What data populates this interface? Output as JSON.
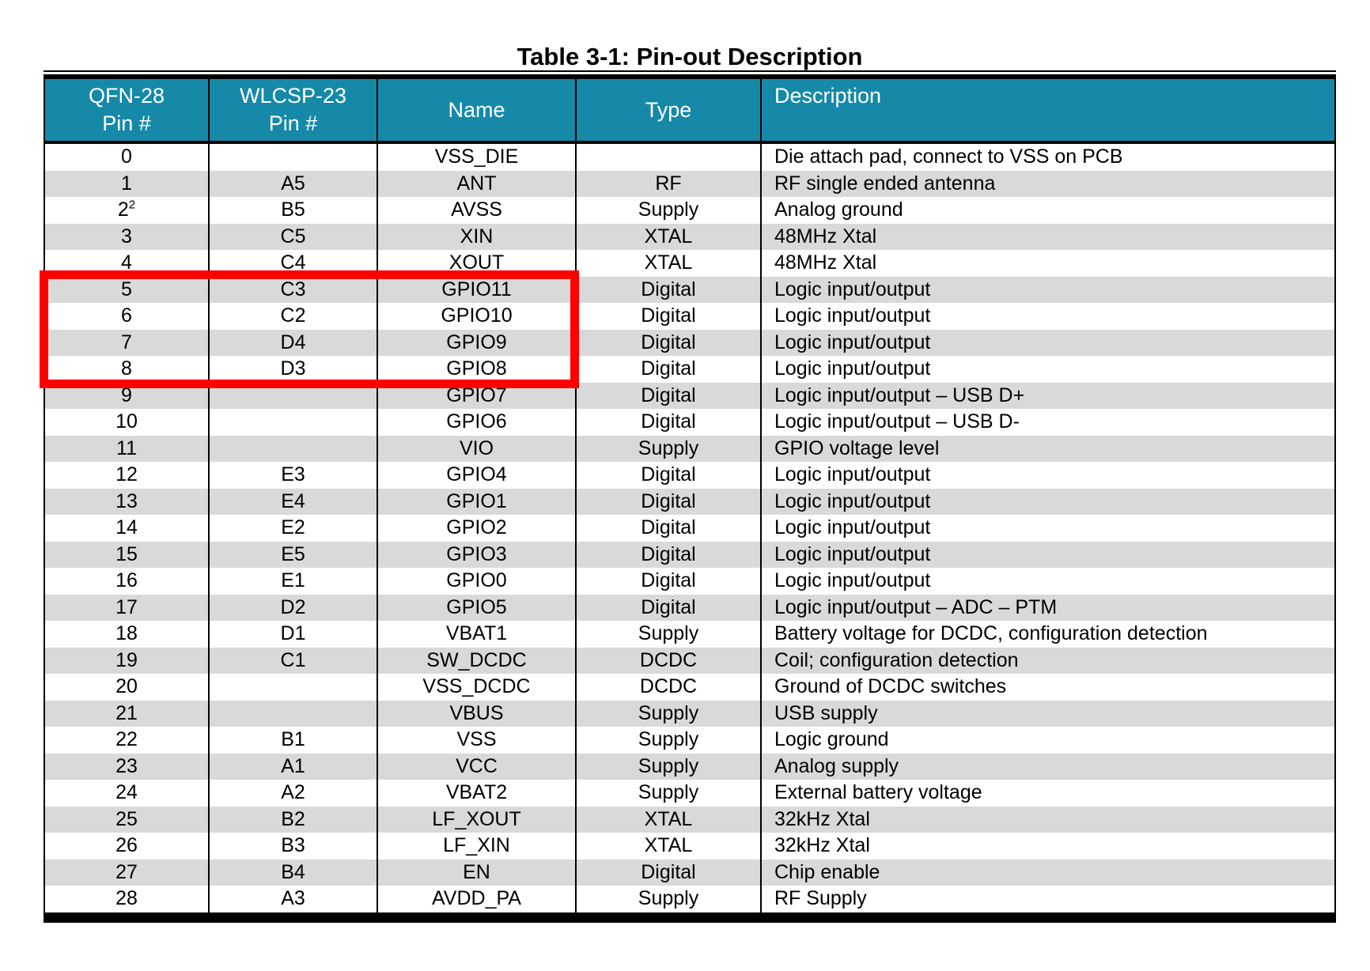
{
  "title": "Table 3-1: Pin-out Description",
  "colors": {
    "header_bg": "#1689a8",
    "header_text": "#ffffff",
    "row_bg": "#ffffff",
    "row_alt_bg": "#d9d9d9",
    "border": "#000000",
    "highlight": "#fe0000"
  },
  "table": {
    "columns": [
      {
        "key": "qfn",
        "lines": [
          "QFN-28",
          "Pin #"
        ]
      },
      {
        "key": "wlcsp",
        "lines": [
          "WLCSP-23",
          "Pin #"
        ]
      },
      {
        "key": "name",
        "lines": [
          "Name"
        ]
      },
      {
        "key": "type",
        "lines": [
          "Type"
        ]
      },
      {
        "key": "description",
        "lines": [
          "Description"
        ]
      }
    ],
    "rows": [
      {
        "qfn": "0",
        "wlcsp": "",
        "name": "VSS_DIE",
        "type": "",
        "desc": "Die attach pad, connect to VSS on PCB"
      },
      {
        "qfn": "1",
        "wlcsp": "A5",
        "name": "ANT",
        "type": "RF",
        "desc": "RF single ended antenna"
      },
      {
        "qfn": "2",
        "qfn_sup": "2",
        "wlcsp": "B5",
        "name": "AVSS",
        "type": "Supply",
        "desc": "Analog ground"
      },
      {
        "qfn": "3",
        "wlcsp": "C5",
        "name": "XIN",
        "type": "XTAL",
        "desc": "48MHz Xtal"
      },
      {
        "qfn": "4",
        "wlcsp": "C4",
        "name": "XOUT",
        "type": "XTAL",
        "desc": "48MHz Xtal"
      },
      {
        "qfn": "5",
        "highlighted": true,
        "wlcsp": "C3",
        "name": "GPIO11",
        "type": "Digital",
        "desc": "Logic input/output"
      },
      {
        "qfn": "6",
        "highlighted": true,
        "wlcsp": "C2",
        "name": "GPIO10",
        "type": "Digital",
        "desc": "Logic input/output"
      },
      {
        "qfn": "7",
        "highlighted": true,
        "wlcsp": "D4",
        "name": "GPIO9",
        "type": "Digital",
        "desc": "Logic input/output"
      },
      {
        "qfn": "8",
        "highlighted": true,
        "wlcsp": "D3",
        "name": "GPIO8",
        "type": "Digital",
        "desc": "Logic input/output"
      },
      {
        "qfn": "9",
        "wlcsp": "",
        "name": "GPIO7",
        "type": "Digital",
        "desc": "Logic input/output – USB D+"
      },
      {
        "qfn": "10",
        "wlcsp": "",
        "name": "GPIO6",
        "type": "Digital",
        "desc": "Logic input/output – USB D-"
      },
      {
        "qfn": "11",
        "wlcsp": "",
        "name": "VIO",
        "type": "Supply",
        "desc": "GPIO voltage level"
      },
      {
        "qfn": "12",
        "wlcsp": "E3",
        "name": "GPIO4",
        "type": "Digital",
        "desc": "Logic input/output"
      },
      {
        "qfn": "13",
        "wlcsp": "E4",
        "name": "GPIO1",
        "type": "Digital",
        "desc": "Logic input/output"
      },
      {
        "qfn": "14",
        "wlcsp": "E2",
        "name": "GPIO2",
        "type": "Digital",
        "desc": "Logic input/output"
      },
      {
        "qfn": "15",
        "wlcsp": "E5",
        "name": "GPIO3",
        "type": "Digital",
        "desc": "Logic input/output"
      },
      {
        "qfn": "16",
        "wlcsp": "E1",
        "name": "GPIO0",
        "type": "Digital",
        "desc": "Logic input/output"
      },
      {
        "qfn": "17",
        "wlcsp": "D2",
        "name": "GPIO5",
        "type": "Digital",
        "desc": "Logic input/output – ADC – PTM"
      },
      {
        "qfn": "18",
        "wlcsp": "D1",
        "name": "VBAT1",
        "type": "Supply",
        "desc": "Battery voltage for DCDC, configuration detection"
      },
      {
        "qfn": "19",
        "wlcsp": "C1",
        "name": "SW_DCDC",
        "type": "DCDC",
        "desc": "Coil; configuration detection"
      },
      {
        "qfn": "20",
        "wlcsp": "",
        "name": "VSS_DCDC",
        "type": "DCDC",
        "desc": "Ground of DCDC switches"
      },
      {
        "qfn": "21",
        "wlcsp": "",
        "name": "VBUS",
        "type": "Supply",
        "desc": "USB supply"
      },
      {
        "qfn": "22",
        "wlcsp": "B1",
        "name": "VSS",
        "type": "Supply",
        "desc": "Logic ground"
      },
      {
        "qfn": "23",
        "wlcsp": "A1",
        "name": "VCC",
        "type": "Supply",
        "desc": "Analog supply"
      },
      {
        "qfn": "24",
        "wlcsp": "A2",
        "name": "VBAT2",
        "type": "Supply",
        "desc": "External battery voltage"
      },
      {
        "qfn": "25",
        "wlcsp": "B2",
        "name": "LF_XOUT",
        "type": "XTAL",
        "desc": "32kHz Xtal"
      },
      {
        "qfn": "26",
        "wlcsp": "B3",
        "name": "LF_XIN",
        "type": "XTAL",
        "desc": "32kHz Xtal"
      },
      {
        "qfn": "27",
        "wlcsp": "B4",
        "name": "EN",
        "type": "Digital",
        "desc": "Chip enable"
      },
      {
        "qfn": "28",
        "wlcsp": "A3",
        "name": "AVDD_PA",
        "type": "Supply",
        "desc": "RF Supply"
      }
    ]
  },
  "highlight_box": {
    "first_pin": "5",
    "last_pin": "8",
    "columns_covered": [
      "QFN-28 Pin #",
      "WLCSP-23 Pin #",
      "Name"
    ],
    "color": "#fe0000"
  }
}
